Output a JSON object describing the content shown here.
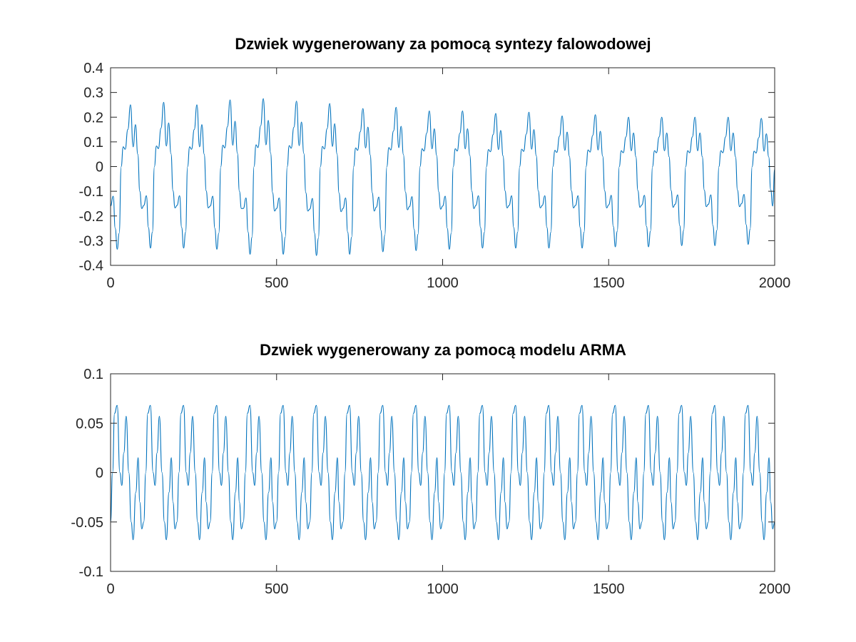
{
  "chart_data": [
    {
      "type": "line",
      "title": "Dzwiek wygenerowany za pomocą syntezy falowodowej",
      "xlabel": "",
      "ylabel": "",
      "xlim": [
        0,
        2000
      ],
      "ylim": [
        -0.4,
        0.4
      ],
      "xticks": [
        0,
        500,
        1000,
        1500,
        2000
      ],
      "xtick_labels": [
        "0",
        "500",
        "1000",
        "1500",
        "2000"
      ],
      "yticks": [
        -0.4,
        -0.3,
        -0.2,
        -0.1,
        0,
        0.1,
        0.2,
        0.3,
        0.4
      ],
      "ytick_labels": [
        "-0.4",
        "-0.3",
        "-0.2",
        "-0.1",
        "0",
        "0.1",
        "0.2",
        "0.3",
        "0.4"
      ],
      "grid": false,
      "color": "#0072bd",
      "series": [
        {
          "period": 100,
          "length": 2000,
          "waveform": [
            {
              "x": 0,
              "y": -0.16
            },
            {
              "x": 8,
              "y": -0.12
            },
            {
              "x": 14,
              "y": -0.25
            },
            {
              "x": 20,
              "y": -0.335
            },
            {
              "x": 26,
              "y": -0.27
            },
            {
              "x": 32,
              "y": 0.0
            },
            {
              "x": 38,
              "y": 0.08
            },
            {
              "x": 44,
              "y": 0.07
            },
            {
              "x": 52,
              "y": 0.15
            },
            {
              "x": 60,
              "y": 0.25
            },
            {
              "x": 68,
              "y": 0.08
            },
            {
              "x": 75,
              "y": 0.17
            },
            {
              "x": 82,
              "y": 0.05
            },
            {
              "x": 88,
              "y": -0.1
            },
            {
              "x": 94,
              "y": -0.17
            },
            {
              "x": 100,
              "y": -0.16
            }
          ],
          "peak_values": [
            0.25,
            0.26,
            0.25,
            0.27,
            0.275,
            0.265,
            0.255,
            0.235,
            0.24,
            0.225,
            0.225,
            0.215,
            0.22,
            0.205,
            0.21,
            0.2,
            0.2,
            0.2,
            0.2,
            0.195
          ],
          "trough_values": [
            -0.335,
            -0.33,
            -0.33,
            -0.335,
            -0.355,
            -0.355,
            -0.36,
            -0.355,
            -0.345,
            -0.34,
            -0.335,
            -0.33,
            -0.33,
            -0.33,
            -0.33,
            -0.325,
            -0.325,
            -0.32,
            -0.32,
            -0.315
          ],
          "end_value": -0.01
        }
      ]
    },
    {
      "type": "line",
      "title": "Dzwiek wygenerowany za pomocą modelu ARMA",
      "xlabel": "",
      "ylabel": "",
      "xlim": [
        0,
        2000
      ],
      "ylim": [
        -0.1,
        0.1
      ],
      "xticks": [
        0,
        500,
        1000,
        1500,
        2000
      ],
      "xtick_labels": [
        "0",
        "500",
        "1000",
        "1500",
        "2000"
      ],
      "yticks": [
        -0.1,
        -0.05,
        0,
        0.05,
        0.1
      ],
      "ytick_labels": [
        "-0.1",
        "-0.05",
        "0",
        "0.05",
        "0.1"
      ],
      "grid": false,
      "color": "#0072bd",
      "series": [
        {
          "period": 100,
          "length": 2000,
          "waveform": [
            {
              "x": 0,
              "y": -0.05
            },
            {
              "x": 6,
              "y": 0.0
            },
            {
              "x": 12,
              "y": 0.06
            },
            {
              "x": 20,
              "y": 0.068
            },
            {
              "x": 28,
              "y": 0.0
            },
            {
              "x": 34,
              "y": -0.013
            },
            {
              "x": 40,
              "y": 0.02
            },
            {
              "x": 47,
              "y": 0.057
            },
            {
              "x": 55,
              "y": 0.0
            },
            {
              "x": 62,
              "y": -0.05
            },
            {
              "x": 68,
              "y": -0.068
            },
            {
              "x": 76,
              "y": -0.02
            },
            {
              "x": 83,
              "y": 0.015
            },
            {
              "x": 88,
              "y": -0.03
            },
            {
              "x": 94,
              "y": -0.057
            },
            {
              "x": 100,
              "y": -0.05
            }
          ],
          "peak_values": [
            0.068,
            0.068,
            0.068,
            0.068,
            0.068,
            0.068,
            0.068,
            0.068,
            0.068,
            0.068,
            0.068,
            0.068,
            0.068,
            0.068,
            0.068,
            0.068,
            0.068,
            0.068,
            0.068,
            0.068
          ],
          "trough_values": [
            -0.068,
            -0.068,
            -0.068,
            -0.068,
            -0.068,
            -0.068,
            -0.068,
            -0.068,
            -0.068,
            -0.068,
            -0.068,
            -0.068,
            -0.068,
            -0.068,
            -0.068,
            -0.068,
            -0.068,
            -0.068,
            -0.068,
            -0.068
          ],
          "end_value": -0.05
        }
      ]
    }
  ]
}
